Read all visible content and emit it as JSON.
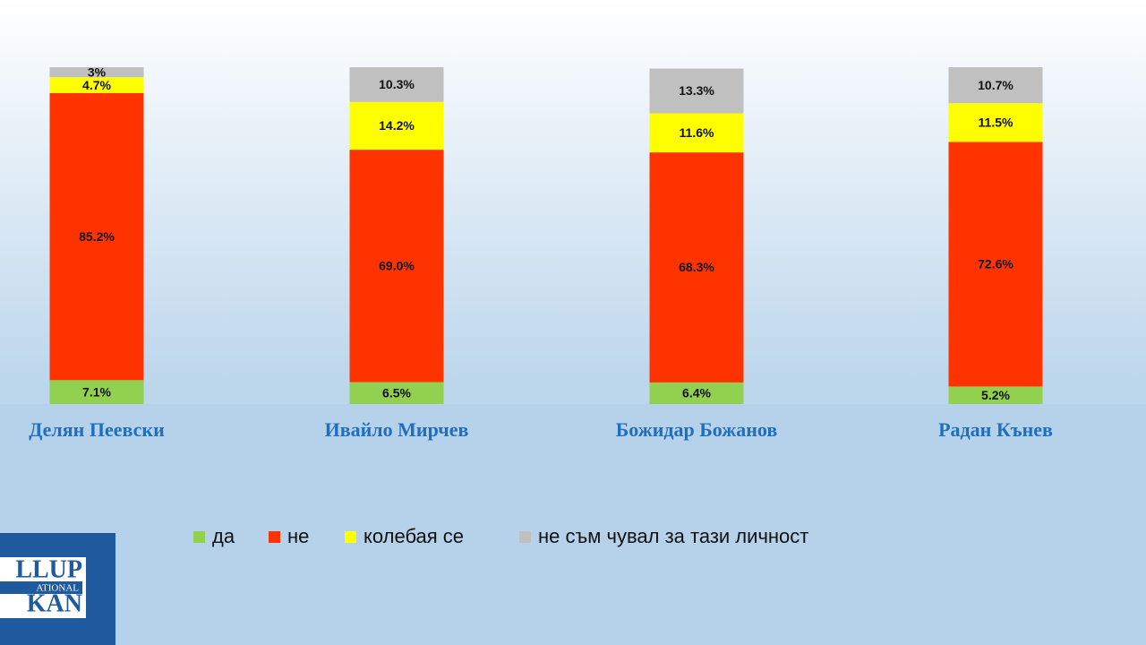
{
  "chart_data": {
    "type": "stacked-bar",
    "categories": [
      "Делян Пеевски",
      "Ивайло Мирчев",
      "Божидар Божанов",
      "Радан Кънев"
    ],
    "series": [
      {
        "name": "да",
        "color": "#92d050",
        "values": [
          7.1,
          6.5,
          6.4,
          5.2
        ],
        "value_labels": [
          "7.1%",
          "6.5%",
          "6.4%",
          "5.2%"
        ]
      },
      {
        "name": "не",
        "color": "#ff3300",
        "values": [
          85.2,
          69.0,
          68.3,
          72.6
        ],
        "value_labels": [
          "85.2%",
          "69.0%",
          "68.3%",
          "72.6%"
        ]
      },
      {
        "name": "колебая се",
        "color": "#ffff00",
        "values": [
          4.7,
          14.2,
          11.6,
          11.5
        ],
        "value_labels": [
          "4.7%",
          "14.2%",
          "11.6%",
          "11.5%"
        ]
      },
      {
        "name": "не съм чувал за тази личност",
        "color": "#c0c0c0",
        "values": [
          3,
          10.3,
          13.3,
          10.7
        ],
        "value_labels": [
          "3%",
          "10.3%",
          "13.3%",
          "10.7%"
        ]
      }
    ]
  },
  "logo": {
    "line1": "LLUP",
    "line2": "ATIONAL",
    "line3": "KAN"
  }
}
